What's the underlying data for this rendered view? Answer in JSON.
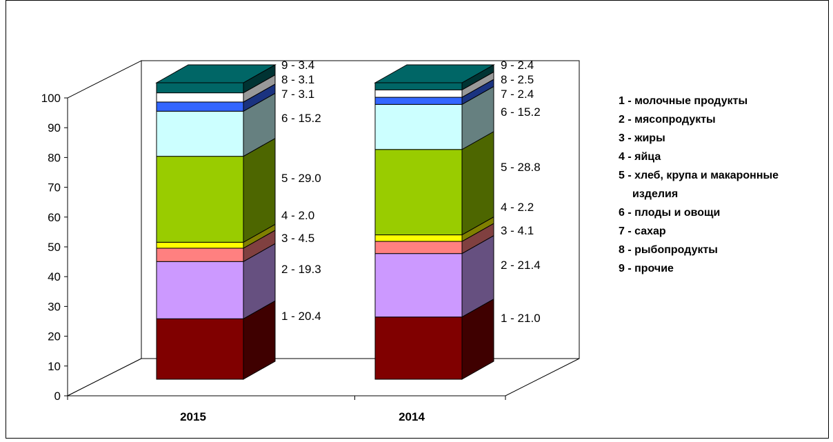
{
  "chart_data": {
    "type": "bar",
    "stacked": true,
    "three_d": true,
    "categories": [
      "2015",
      "2014"
    ],
    "ylim": [
      0,
      100
    ],
    "yticks": [
      "0",
      "10",
      "20",
      "30",
      "40",
      "50",
      "60",
      "70",
      "80",
      "90",
      "100"
    ],
    "series": [
      {
        "name": "1 - молочные продукты",
        "short": "1",
        "values": [
          20.4,
          21.0
        ],
        "color": "#800000",
        "side": "#3f0000"
      },
      {
        "name": "2 - мясопродукты",
        "short": "2",
        "values": [
          19.3,
          21.4
        ],
        "color": "#cc99ff",
        "side": "#665080"
      },
      {
        "name": "3 - жиры",
        "short": "3",
        "values": [
          4.5,
          4.1
        ],
        "color": "#ff8080",
        "side": "#804040"
      },
      {
        "name": "4 - яйца",
        "short": "4",
        "values": [
          2.0,
          2.2
        ],
        "color": "#ffff00",
        "side": "#808000"
      },
      {
        "name": "5 - хлеб, крупа и макаронные изделия",
        "short": "5",
        "values": [
          29.0,
          28.8
        ],
        "color": "#99cc00",
        "side": "#4d6600"
      },
      {
        "name": "6 - плоды и  овощи",
        "short": "6",
        "values": [
          15.2,
          15.2
        ],
        "color": "#ccffff",
        "side": "#668080"
      },
      {
        "name": "7 - сахар",
        "short": "7",
        "values": [
          3.1,
          2.4
        ],
        "color": "#3366ff",
        "side": "#1a3380"
      },
      {
        "name": "8 - рыбопродукты",
        "short": "8",
        "values": [
          3.1,
          2.5
        ],
        "color": "#ffffff",
        "side": "#999999"
      },
      {
        "name": "9 - прочие",
        "short": "9",
        "values": [
          3.4,
          2.4
        ],
        "color": "#006666",
        "side": "#003333"
      }
    ],
    "data_labels": {
      "2015": [
        "1 - 20.4",
        "2 - 19.3",
        "3 - 4.5",
        "4 - 2.0",
        "5 - 29.0",
        "6 - 15.2",
        "7 - 3.1",
        "8 - 3.1",
        "9 - 3.4"
      ],
      "2014": [
        "1 - 21.0",
        "2 - 21.4",
        "3 - 4.1",
        "4 - 2.2",
        "5 - 28.8",
        "6 - 15.2",
        "7 - 2.4",
        "8 - 2.5",
        "9 - 2.4"
      ]
    },
    "legend": {
      "position": "right",
      "items": [
        "1 - молочные продукты",
        "2 - мясопродукты",
        "3 - жиры",
        "4 - яйца",
        "5 - хлеб, крупа и макаронные",
        "изделия",
        "6 - плоды и  овощи",
        "7 - сахар",
        "8 - рыбопродукты",
        "9 - прочие"
      ]
    }
  }
}
